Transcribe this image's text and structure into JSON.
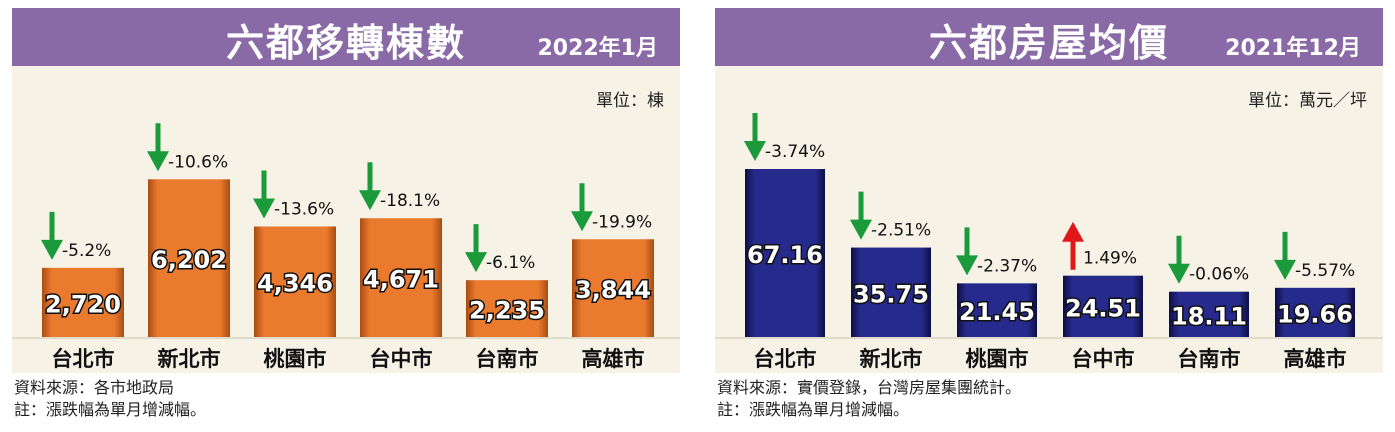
{
  "panels": [
    {
      "title": "六都移轉棟數",
      "date": "2022年1月",
      "unit_label": "單位：棟",
      "source": "資料來源：各市地政局",
      "note": "註：漲跌幅為單月增減幅。",
      "bar_color": "#ea7a2e",
      "bar_shadow": "#a84c12"
    },
    {
      "title": "六都房屋均價",
      "date": "2021年12月",
      "unit_label": "單位：萬元／坪",
      "source": "資料來源：實價登錄，台灣房屋集團統計。",
      "note": "註：漲跌幅為單月增減幅。",
      "bar_color": "#262a8c",
      "bar_shadow": "#0d0f45"
    }
  ],
  "chart_data": [
    {
      "type": "bar",
      "title": "六都移轉棟數",
      "subtitle": "2022年1月",
      "ylabel": "單位：棟",
      "categories": [
        "台北市",
        "新北市",
        "桃園市",
        "台中市",
        "台南市",
        "高雄市"
      ],
      "values": [
        2720,
        6202,
        4346,
        4671,
        2235,
        3844
      ],
      "value_labels": [
        "2,720",
        "6,202",
        "4,346",
        "4,671",
        "2,235",
        "3,844"
      ],
      "changes": [
        "-5.2%",
        "-10.6%",
        "-13.6%",
        "-18.1%",
        "-6.1%",
        "-19.9%"
      ],
      "directions": [
        "down",
        "down",
        "down",
        "down",
        "down",
        "down"
      ],
      "ylim": [
        0,
        7000
      ]
    },
    {
      "type": "bar",
      "title": "六都房屋均價",
      "subtitle": "2021年12月",
      "ylabel": "單位：萬元／坪",
      "categories": [
        "台北市",
        "新北市",
        "桃園市",
        "台中市",
        "台南市",
        "高雄市"
      ],
      "values": [
        67.16,
        35.75,
        21.45,
        24.51,
        18.11,
        19.66
      ],
      "value_labels": [
        "67.16",
        "35.75",
        "21.45",
        "24.51",
        "18.11",
        "19.66"
      ],
      "changes": [
        "-3.74%",
        "-2.51%",
        "-2.37%",
        "1.49%",
        "-0.06%",
        "-5.57%"
      ],
      "directions": [
        "down",
        "down",
        "down",
        "up",
        "down",
        "down"
      ],
      "ylim": [
        0,
        67.16
      ]
    }
  ],
  "colors": {
    "header": "#8a6aa6",
    "plot_bg": "#f6f2e6",
    "arrow_down": "#1a9a3a",
    "arrow_up": "#e01818"
  }
}
